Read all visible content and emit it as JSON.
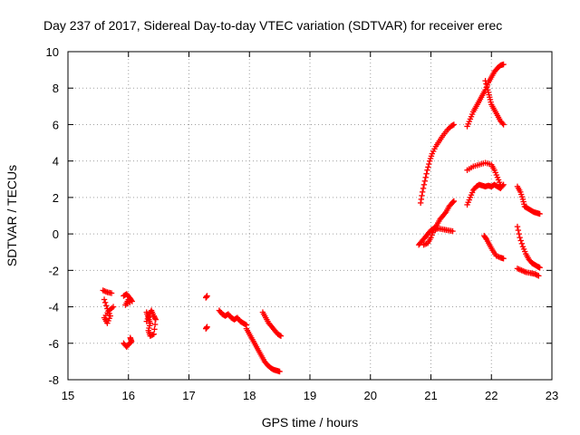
{
  "chart_data": {
    "type": "scatter",
    "title": "Day 237 of 2017, Sidereal Day-to-day VTEC variation (SDTVAR) for receiver erec",
    "xlabel": "GPS time / hours",
    "ylabel": "SDTVAR / TECUs",
    "xlim": [
      15,
      23
    ],
    "ylim": [
      -8,
      10
    ],
    "xticks": [
      15,
      16,
      17,
      18,
      19,
      20,
      21,
      22,
      23
    ],
    "yticks": [
      -8,
      -6,
      -4,
      -2,
      0,
      2,
      4,
      6,
      8,
      10
    ],
    "grid": true,
    "marker": "+",
    "series": [
      {
        "name": "SDTVAR",
        "color": "#ff0000",
        "tracks": [
          [
            [
              15.58,
              -3.1
            ],
            [
              15.65,
              -3.2
            ],
            [
              15.72,
              -3.25
            ]
          ],
          [
            [
              15.6,
              -3.6
            ],
            [
              15.65,
              -4.1
            ],
            [
              15.7,
              -4.5
            ],
            [
              15.65,
              -4.9
            ],
            [
              15.6,
              -4.6
            ],
            [
              15.68,
              -4.2
            ],
            [
              15.75,
              -4.0
            ]
          ],
          [
            [
              15.92,
              -3.4
            ],
            [
              15.97,
              -3.3
            ],
            [
              16.02,
              -3.5
            ],
            [
              16.06,
              -3.7
            ],
            [
              15.95,
              -3.9
            ],
            [
              16.0,
              -3.6
            ]
          ],
          [
            [
              15.92,
              -6.0
            ],
            [
              15.97,
              -6.2
            ],
            [
              16.02,
              -6.0
            ],
            [
              16.05,
              -5.9
            ],
            [
              16.03,
              -5.7
            ]
          ],
          [
            [
              16.3,
              -4.3
            ],
            [
              16.33,
              -4.6
            ],
            [
              16.36,
              -4.9
            ],
            [
              16.33,
              -5.3
            ],
            [
              16.36,
              -5.6
            ],
            [
              16.42,
              -5.5
            ],
            [
              16.45,
              -4.7
            ],
            [
              16.42,
              -4.5
            ],
            [
              16.38,
              -4.2
            ],
            [
              16.35,
              -4.4
            ],
            [
              16.3,
              -4.8
            ]
          ],
          [
            [
              17.28,
              -3.5
            ],
            [
              17.3,
              -3.4
            ]
          ],
          [
            [
              17.28,
              -5.2
            ],
            [
              17.3,
              -5.1
            ]
          ],
          [
            [
              17.5,
              -4.2
            ],
            [
              17.55,
              -4.4
            ],
            [
              17.6,
              -4.5
            ],
            [
              17.65,
              -4.4
            ],
            [
              17.7,
              -4.6
            ],
            [
              17.75,
              -4.7
            ],
            [
              17.8,
              -4.6
            ],
            [
              17.85,
              -4.8
            ],
            [
              17.9,
              -4.9
            ],
            [
              17.95,
              -5.0
            ]
          ],
          [
            [
              17.95,
              -5.2
            ],
            [
              18.0,
              -5.5
            ],
            [
              18.05,
              -5.8
            ],
            [
              18.1,
              -6.1
            ],
            [
              18.15,
              -6.4
            ],
            [
              18.2,
              -6.7
            ],
            [
              18.25,
              -7.0
            ],
            [
              18.3,
              -7.2
            ],
            [
              18.35,
              -7.35
            ],
            [
              18.4,
              -7.45
            ],
            [
              18.45,
              -7.5
            ],
            [
              18.5,
              -7.55
            ]
          ],
          [
            [
              18.22,
              -4.3
            ],
            [
              18.27,
              -4.6
            ],
            [
              18.32,
              -4.9
            ],
            [
              18.37,
              -5.1
            ],
            [
              18.42,
              -5.3
            ],
            [
              18.47,
              -5.5
            ],
            [
              18.52,
              -5.6
            ]
          ],
          [
            [
              20.83,
              1.7
            ],
            [
              20.86,
              2.3
            ],
            [
              20.9,
              2.9
            ],
            [
              20.94,
              3.5
            ],
            [
              20.98,
              4.0
            ],
            [
              21.02,
              4.4
            ],
            [
              21.08,
              4.8
            ],
            [
              21.14,
              5.1
            ],
            [
              21.2,
              5.4
            ],
            [
              21.27,
              5.7
            ],
            [
              21.33,
              5.9
            ],
            [
              21.38,
              6.0
            ]
          ],
          [
            [
              20.8,
              -0.6
            ],
            [
              20.85,
              -0.4
            ],
            [
              20.9,
              -0.2
            ],
            [
              20.95,
              0.0
            ],
            [
              21.0,
              0.2
            ],
            [
              21.05,
              0.3
            ],
            [
              21.1,
              0.5
            ],
            [
              21.15,
              0.8
            ],
            [
              21.2,
              1.0
            ],
            [
              21.25,
              1.2
            ],
            [
              21.3,
              1.5
            ],
            [
              21.35,
              1.7
            ],
            [
              21.38,
              1.8
            ]
          ],
          [
            [
              20.88,
              -0.6
            ],
            [
              20.95,
              -0.5
            ],
            [
              21.0,
              -0.2
            ],
            [
              21.05,
              0.2
            ],
            [
              21.12,
              0.3
            ],
            [
              21.2,
              0.25
            ],
            [
              21.28,
              0.2
            ],
            [
              21.36,
              0.15
            ]
          ],
          [
            [
              21.6,
              5.9
            ],
            [
              21.65,
              6.3
            ],
            [
              21.7,
              6.7
            ],
            [
              21.75,
              7.0
            ],
            [
              21.8,
              7.3
            ],
            [
              21.85,
              7.6
            ],
            [
              21.9,
              7.9
            ],
            [
              21.95,
              8.3
            ],
            [
              22.0,
              8.6
            ],
            [
              22.05,
              8.9
            ],
            [
              22.1,
              9.1
            ],
            [
              22.15,
              9.25
            ],
            [
              22.2,
              9.3
            ]
          ],
          [
            [
              21.9,
              8.4
            ],
            [
              21.94,
              7.9
            ],
            [
              21.97,
              7.5
            ],
            [
              22.0,
              7.1
            ],
            [
              22.05,
              6.8
            ],
            [
              22.1,
              6.5
            ],
            [
              22.15,
              6.2
            ],
            [
              22.2,
              6.0
            ]
          ],
          [
            [
              21.6,
              3.5
            ],
            [
              21.7,
              3.7
            ],
            [
              21.8,
              3.8
            ],
            [
              21.9,
              3.9
            ],
            [
              22.0,
              3.8
            ],
            [
              22.05,
              3.5
            ],
            [
              22.1,
              3.1
            ],
            [
              22.15,
              2.7
            ]
          ],
          [
            [
              21.6,
              1.6
            ],
            [
              21.65,
              2.0
            ],
            [
              21.7,
              2.4
            ],
            [
              21.75,
              2.6
            ],
            [
              21.8,
              2.7
            ],
            [
              21.85,
              2.65
            ],
            [
              21.9,
              2.6
            ],
            [
              21.95,
              2.65
            ],
            [
              22.0,
              2.6
            ],
            [
              22.05,
              2.7
            ],
            [
              22.1,
              2.6
            ],
            [
              22.15,
              2.5
            ],
            [
              22.2,
              2.7
            ]
          ],
          [
            [
              21.88,
              -0.1
            ],
            [
              21.92,
              -0.3
            ],
            [
              21.97,
              -0.6
            ],
            [
              22.02,
              -0.9
            ],
            [
              22.08,
              -1.2
            ],
            [
              22.15,
              -1.3
            ],
            [
              22.2,
              -1.35
            ]
          ],
          [
            [
              22.43,
              2.6
            ],
            [
              22.48,
              2.3
            ],
            [
              22.52,
              1.9
            ],
            [
              22.55,
              1.5
            ],
            [
              22.6,
              1.4
            ],
            [
              22.65,
              1.3
            ],
            [
              22.7,
              1.2
            ],
            [
              22.75,
              1.15
            ],
            [
              22.8,
              1.1
            ]
          ],
          [
            [
              22.43,
              0.4
            ],
            [
              22.47,
              -0.2
            ],
            [
              22.52,
              -0.7
            ],
            [
              22.57,
              -1.1
            ],
            [
              22.62,
              -1.4
            ],
            [
              22.67,
              -1.6
            ],
            [
              22.72,
              -1.7
            ],
            [
              22.77,
              -1.8
            ],
            [
              22.8,
              -1.85
            ]
          ],
          [
            [
              22.43,
              -1.9
            ],
            [
              22.5,
              -2.0
            ],
            [
              22.57,
              -2.1
            ],
            [
              22.65,
              -2.15
            ],
            [
              22.72,
              -2.2
            ],
            [
              22.78,
              -2.3
            ]
          ]
        ]
      }
    ]
  }
}
